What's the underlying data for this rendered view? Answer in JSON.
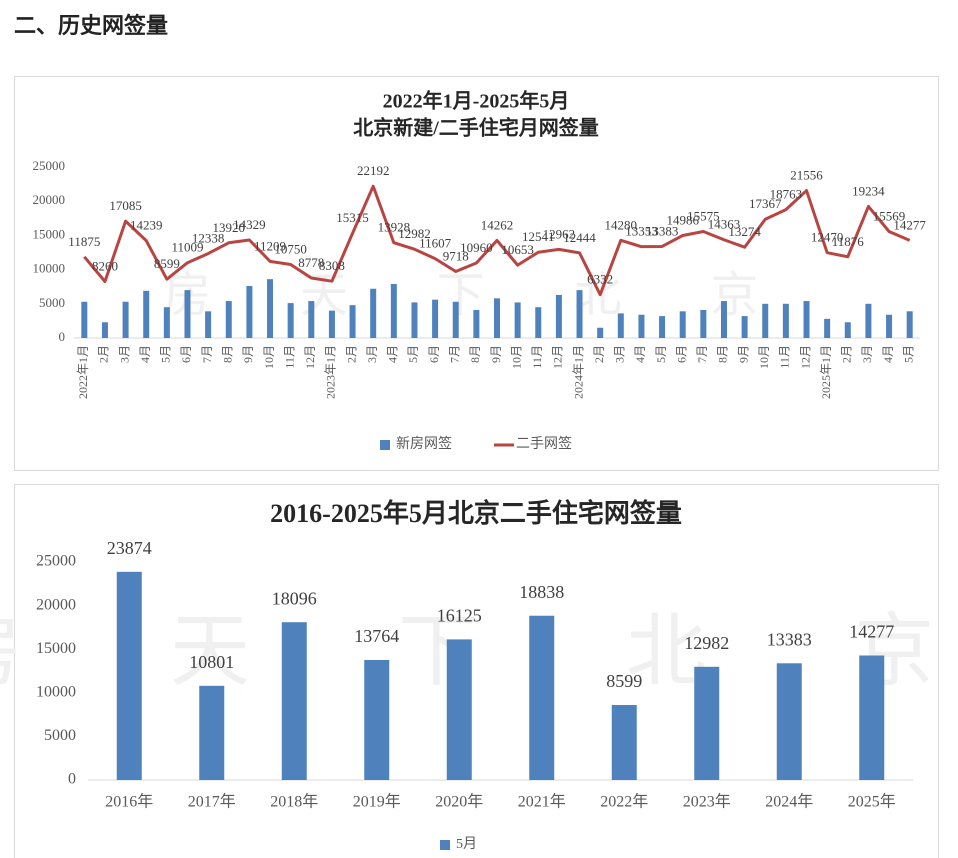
{
  "heading": "二、历史网签量",
  "watermark": "房 天 下 北 京",
  "chart_data": [
    {
      "type": "combo",
      "title": [
        "2022年1月-2025年5月",
        "北京新建/二手住宅月网签量"
      ],
      "categories": [
        "2022年1月",
        "2月",
        "3月",
        "4月",
        "5月",
        "6月",
        "7月",
        "8月",
        "9月",
        "10月",
        "11月",
        "12月",
        "2023年1月",
        "2月",
        "3月",
        "4月",
        "5月",
        "6月",
        "7月",
        "8月",
        "9月",
        "10月",
        "11月",
        "12月",
        "2024年1月",
        "2月",
        "3月",
        "4月",
        "5月",
        "6月",
        "7月",
        "8月",
        "9月",
        "10月",
        "11月",
        "12月",
        "2025年1月",
        "2月",
        "3月",
        "4月",
        "5月"
      ],
      "series": [
        {
          "name": "新房网签",
          "type": "bar",
          "color": "#4f81bd",
          "values": [
            5300,
            2300,
            5300,
            6900,
            4500,
            7000,
            3900,
            5400,
            7600,
            8600,
            5100,
            5400,
            4000,
            4800,
            7200,
            7900,
            5200,
            5600,
            5300,
            4100,
            5800,
            5200,
            4500,
            6300,
            7000,
            1500,
            3600,
            3400,
            3200,
            3900,
            4100,
            5400,
            3200,
            5000,
            5000,
            5400,
            2800,
            2300,
            5000,
            3400,
            3900
          ]
        },
        {
          "name": "二手网签",
          "type": "line",
          "color": "#b84542",
          "values": [
            11875,
            8260,
            17085,
            14239,
            8599,
            11009,
            12338,
            13920,
            14329,
            11209,
            10750,
            8778,
            8308,
            15315,
            22192,
            13928,
            12982,
            11607,
            9718,
            10960,
            14262,
            10653,
            12541,
            12962,
            12444,
            6332,
            14280,
            13353,
            13383,
            14986,
            15575,
            14363,
            13274,
            17367,
            18763,
            21556,
            12470,
            11876,
            19234,
            15569,
            14277
          ]
        }
      ],
      "ylim": [
        0,
        25000
      ],
      "yticks": [
        0,
        5000,
        10000,
        15000,
        20000,
        25000
      ],
      "grid": false,
      "legend": "bottom"
    },
    {
      "type": "bar",
      "title": [
        "2016-2025年5月北京二手住宅网签量"
      ],
      "categories": [
        "2016年",
        "2017年",
        "2018年",
        "2019年",
        "2020年",
        "2021年",
        "2022年",
        "2023年",
        "2024年",
        "2025年"
      ],
      "series": [
        {
          "name": "5月",
          "type": "bar",
          "color": "#4f81bd",
          "values": [
            23874,
            10801,
            18096,
            13764,
            16125,
            18838,
            8599,
            12982,
            13383,
            14277
          ]
        }
      ],
      "ylim": [
        0,
        25000
      ],
      "yticks": [
        0,
        5000,
        10000,
        15000,
        20000,
        25000
      ],
      "grid": false,
      "legend": "bottom"
    }
  ]
}
